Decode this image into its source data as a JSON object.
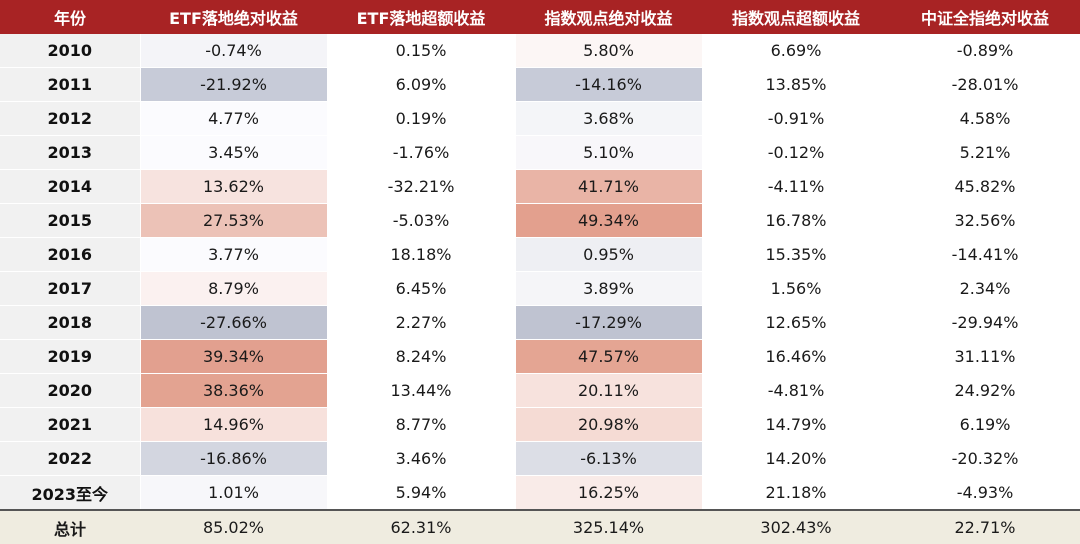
{
  "table": {
    "headers": [
      "年份",
      "ETF落地绝对收益",
      "ETF落地超额收益",
      "指数观点绝对收益",
      "指数观点超额收益",
      "中证全指绝对收益"
    ],
    "rows": [
      {
        "year": "2010",
        "cells": [
          {
            "text": "-0.74%",
            "bg": "#f4f4f8"
          },
          {
            "text": "0.15%",
            "bg": "#ffffff"
          },
          {
            "text": "5.80%",
            "bg": "#fcf6f5"
          },
          {
            "text": "6.69%",
            "bg": "#ffffff"
          },
          {
            "text": "-0.89%",
            "bg": "#ffffff"
          }
        ]
      },
      {
        "year": "2011",
        "cells": [
          {
            "text": "-21.92%",
            "bg": "#c7cbd8"
          },
          {
            "text": "6.09%",
            "bg": "#ffffff"
          },
          {
            "text": "-14.16%",
            "bg": "#c7cbd8"
          },
          {
            "text": "13.85%",
            "bg": "#ffffff"
          },
          {
            "text": "-28.01%",
            "bg": "#ffffff"
          }
        ]
      },
      {
        "year": "2012",
        "cells": [
          {
            "text": "4.77%",
            "bg": "#fbfbfe"
          },
          {
            "text": "0.19%",
            "bg": "#ffffff"
          },
          {
            "text": "3.68%",
            "bg": "#f4f5f8"
          },
          {
            "text": "-0.91%",
            "bg": "#ffffff"
          },
          {
            "text": "4.58%",
            "bg": "#ffffff"
          }
        ]
      },
      {
        "year": "2013",
        "cells": [
          {
            "text": "3.45%",
            "bg": "#fbfbfe"
          },
          {
            "text": "-1.76%",
            "bg": "#ffffff"
          },
          {
            "text": "5.10%",
            "bg": "#f8f7fa"
          },
          {
            "text": "-0.12%",
            "bg": "#ffffff"
          },
          {
            "text": "5.21%",
            "bg": "#ffffff"
          }
        ]
      },
      {
        "year": "2014",
        "cells": [
          {
            "text": "13.62%",
            "bg": "#f7e3df"
          },
          {
            "text": "-32.21%",
            "bg": "#ffffff"
          },
          {
            "text": "41.71%",
            "bg": "#e9b4a6"
          },
          {
            "text": "-4.11%",
            "bg": "#ffffff"
          },
          {
            "text": "45.82%",
            "bg": "#ffffff"
          }
        ]
      },
      {
        "year": "2015",
        "cells": [
          {
            "text": "27.53%",
            "bg": "#ecc2b7"
          },
          {
            "text": "-5.03%",
            "bg": "#ffffff"
          },
          {
            "text": "49.34%",
            "bg": "#e3a08e"
          },
          {
            "text": "16.78%",
            "bg": "#ffffff"
          },
          {
            "text": "32.56%",
            "bg": "#ffffff"
          }
        ]
      },
      {
        "year": "2016",
        "cells": [
          {
            "text": "3.77%",
            "bg": "#fbfbfe"
          },
          {
            "text": "18.18%",
            "bg": "#ffffff"
          },
          {
            "text": "0.95%",
            "bg": "#eeeff3"
          },
          {
            "text": "15.35%",
            "bg": "#ffffff"
          },
          {
            "text": "-14.41%",
            "bg": "#ffffff"
          }
        ]
      },
      {
        "year": "2017",
        "cells": [
          {
            "text": "8.79%",
            "bg": "#fbf1f0"
          },
          {
            "text": "6.45%",
            "bg": "#ffffff"
          },
          {
            "text": "3.89%",
            "bg": "#f5f5f8"
          },
          {
            "text": "1.56%",
            "bg": "#ffffff"
          },
          {
            "text": "2.34%",
            "bg": "#ffffff"
          }
        ]
      },
      {
        "year": "2018",
        "cells": [
          {
            "text": "-27.66%",
            "bg": "#bfc3d1"
          },
          {
            "text": "2.27%",
            "bg": "#ffffff"
          },
          {
            "text": "-17.29%",
            "bg": "#bfc3d1"
          },
          {
            "text": "12.65%",
            "bg": "#ffffff"
          },
          {
            "text": "-29.94%",
            "bg": "#ffffff"
          }
        ]
      },
      {
        "year": "2019",
        "cells": [
          {
            "text": "39.34%",
            "bg": "#e2a08f"
          },
          {
            "text": "8.24%",
            "bg": "#ffffff"
          },
          {
            "text": "47.57%",
            "bg": "#e4a593"
          },
          {
            "text": "16.46%",
            "bg": "#ffffff"
          },
          {
            "text": "31.11%",
            "bg": "#ffffff"
          }
        ]
      },
      {
        "year": "2020",
        "cells": [
          {
            "text": "38.36%",
            "bg": "#e3a391"
          },
          {
            "text": "13.44%",
            "bg": "#ffffff"
          },
          {
            "text": "20.11%",
            "bg": "#f7e2dd"
          },
          {
            "text": "-4.81%",
            "bg": "#ffffff"
          },
          {
            "text": "24.92%",
            "bg": "#ffffff"
          }
        ]
      },
      {
        "year": "2021",
        "cells": [
          {
            "text": "14.96%",
            "bg": "#f7e1dc"
          },
          {
            "text": "8.77%",
            "bg": "#ffffff"
          },
          {
            "text": "20.98%",
            "bg": "#f5dbd4"
          },
          {
            "text": "14.79%",
            "bg": "#ffffff"
          },
          {
            "text": "6.19%",
            "bg": "#ffffff"
          }
        ]
      },
      {
        "year": "2022",
        "cells": [
          {
            "text": "-16.86%",
            "bg": "#d3d6e0"
          },
          {
            "text": "3.46%",
            "bg": "#ffffff"
          },
          {
            "text": "-6.13%",
            "bg": "#dcdee6"
          },
          {
            "text": "14.20%",
            "bg": "#ffffff"
          },
          {
            "text": "-20.32%",
            "bg": "#ffffff"
          }
        ]
      },
      {
        "year": "2023至今",
        "cells": [
          {
            "text": "1.01%",
            "bg": "#f7f7fa"
          },
          {
            "text": "5.94%",
            "bg": "#ffffff"
          },
          {
            "text": "16.25%",
            "bg": "#f9ebe8"
          },
          {
            "text": "21.18%",
            "bg": "#ffffff"
          },
          {
            "text": "-4.93%",
            "bg": "#ffffff"
          }
        ]
      }
    ],
    "total": {
      "label": "总计",
      "cells": [
        "85.02%",
        "62.31%",
        "325.14%",
        "302.43%",
        "22.71%"
      ]
    }
  },
  "colors": {
    "header_bg": "#a82324",
    "header_text": "#ffffff",
    "year_column_bg": "#f1f1f1",
    "total_row_bg": "#efece0"
  }
}
